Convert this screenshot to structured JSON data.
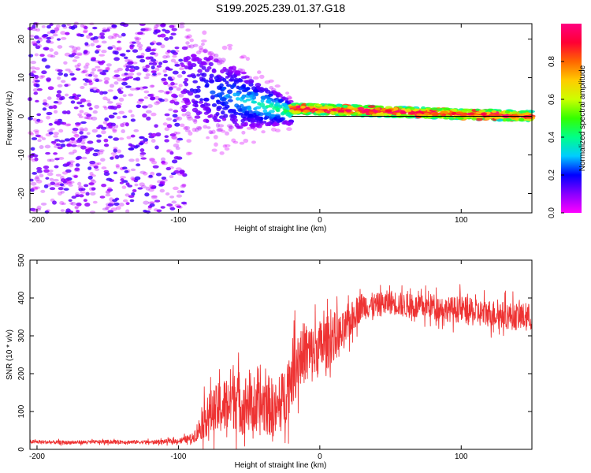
{
  "title": "S199.2025.239.01.37.G18",
  "chart_data": [
    {
      "type": "heatmap",
      "title": "S199.2025.239.01.37.G18",
      "xlabel": "Height of straight line (km)",
      "ylabel": "Frequency (Hz)",
      "xlim": [
        -205,
        150
      ],
      "ylim": [
        -25,
        24
      ],
      "xticks": [
        -200,
        -100,
        0,
        100
      ],
      "yticks": [
        -20,
        -10,
        0,
        10,
        20
      ],
      "colorbar": {
        "label": "Normalized spectral amplitude",
        "range": [
          0,
          1
        ],
        "ticks": [
          0.0,
          0.2,
          0.4,
          0.6,
          0.8
        ],
        "tick_labels": [
          "0.0",
          "0.2",
          "0.4",
          "0.6",
          "0.8"
        ],
        "colormap": [
          "#ff00ff",
          "#8800ff",
          "#0000ff",
          "#00ccff",
          "#00ff88",
          "#33ff00",
          "#ccff00",
          "#ffcc00",
          "#ff6600",
          "#ff0033",
          "#ff0080"
        ]
      },
      "regions": [
        {
          "x": [
            -205,
            -95
          ],
          "freq_range": [
            -25,
            24
          ],
          "amplitude": [
            0.0,
            0.2
          ],
          "description": "noise"
        },
        {
          "x": [
            -95,
            -20
          ],
          "freq_center": [
            8,
            1
          ],
          "amplitude": [
            0.1,
            0.4
          ]
        },
        {
          "x": [
            -20,
            150
          ],
          "freq_center": [
            2,
            0
          ],
          "amplitude": [
            0.3,
            1.0
          ]
        }
      ],
      "reference_line": {
        "freq": 0
      }
    },
    {
      "type": "line",
      "xlabel": "Height of straight line (km)",
      "ylabel": "SNR (10 * v/v)",
      "xlim": [
        -205,
        150
      ],
      "ylim": [
        0,
        500
      ],
      "xticks": [
        -200,
        -100,
        0,
        100
      ],
      "yticks": [
        0,
        100,
        200,
        300,
        400,
        500
      ],
      "color": "#ee3333",
      "series": [
        {
          "name": "SNR",
          "x": [
            -205,
            -180,
            -150,
            -120,
            -100,
            -90,
            -85,
            -80,
            -75,
            -70,
            -65,
            -60,
            -55,
            -50,
            -45,
            -40,
            -35,
            -30,
            -25,
            -20,
            -15,
            -10,
            -5,
            0,
            5,
            10,
            15,
            20,
            25,
            30,
            40,
            50,
            60,
            70,
            80,
            90,
            100,
            110,
            120,
            130,
            140,
            150
          ],
          "values": [
            20,
            18,
            20,
            19,
            22,
            30,
            55,
            90,
            100,
            110,
            120,
            150,
            110,
            130,
            95,
            120,
            115,
            100,
            140,
            200,
            240,
            260,
            250,
            270,
            280,
            300,
            300,
            330,
            360,
            380,
            380,
            390,
            380,
            375,
            380,
            370,
            370,
            360,
            360,
            355,
            350,
            350
          ],
          "spread": [
            6,
            6,
            6,
            6,
            8,
            15,
            40,
            70,
            80,
            90,
            100,
            120,
            90,
            110,
            80,
            100,
            100,
            90,
            100,
            110,
            110,
            100,
            100,
            90,
            90,
            80,
            70,
            60,
            50,
            45,
            40,
            40,
            40,
            40,
            40,
            40,
            45,
            45,
            45,
            45,
            45,
            45
          ]
        }
      ]
    }
  ]
}
